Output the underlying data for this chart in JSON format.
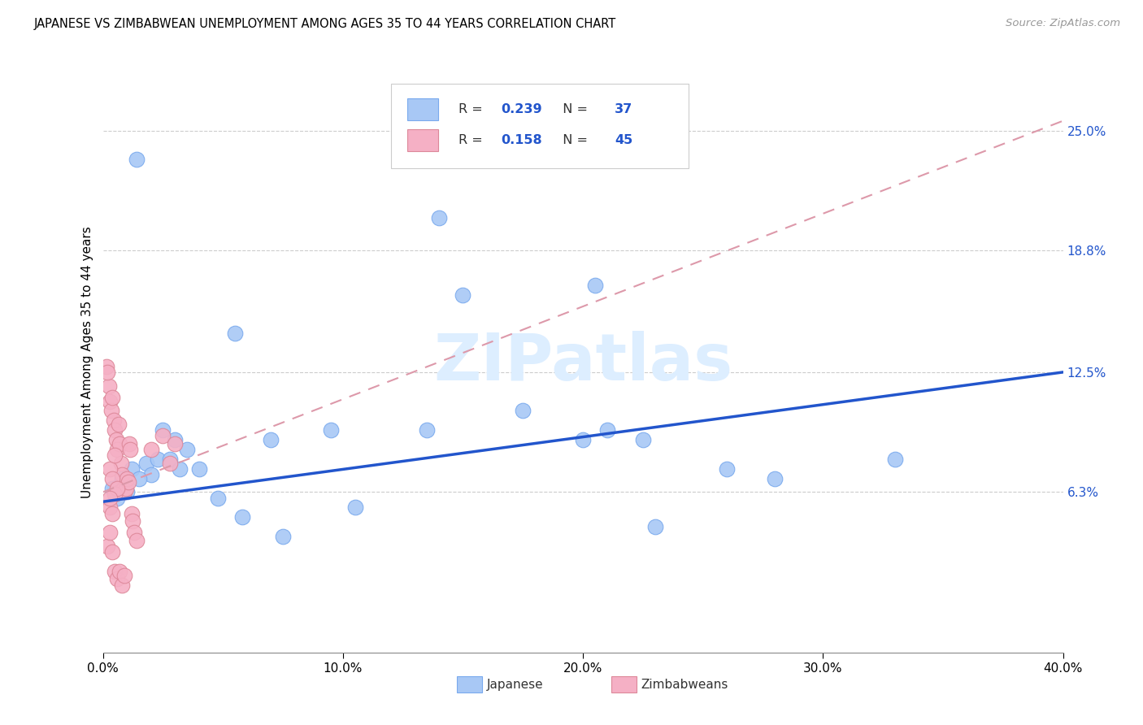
{
  "title": "JAPANESE VS ZIMBABWEAN UNEMPLOYMENT AMONG AGES 35 TO 44 YEARS CORRELATION CHART",
  "source": "Source: ZipAtlas.com",
  "ylabel": "Unemployment Among Ages 35 to 44 years",
  "ytick_labels": [
    "6.3%",
    "12.5%",
    "18.8%",
    "25.0%"
  ],
  "ytick_values": [
    6.3,
    12.5,
    18.8,
    25.0
  ],
  "xlim": [
    0.0,
    40.0
  ],
  "ylim": [
    -2.0,
    28.0
  ],
  "japanese_R": "0.239",
  "japanese_N": "37",
  "zimbabwean_R": "0.158",
  "zimbabwean_N": "45",
  "japanese_color": "#a8c8f5",
  "japanese_edge_color": "#7aaaee",
  "zimbabwean_color": "#f5b0c5",
  "zimbabwean_edge_color": "#dd8899",
  "japanese_line_color": "#2255cc",
  "zimbabwean_line_color": "#dd99aa",
  "grid_color": "#cccccc",
  "watermark_text": "ZIPatlas",
  "watermark_color": "#ddeeff",
  "japanese_x": [
    5.5,
    1.4,
    2.5,
    3.0,
    3.5,
    4.0,
    1.8,
    2.0,
    2.3,
    2.8,
    1.2,
    0.8,
    0.5,
    1.0,
    1.5,
    14.0,
    13.5,
    20.0,
    21.0,
    22.5,
    28.0,
    33.0,
    17.5,
    23.0,
    10.5,
    7.5,
    4.8,
    5.8,
    7.0,
    9.5,
    0.4,
    0.6,
    0.9,
    20.5,
    15.0,
    26.0,
    3.2
  ],
  "japanese_y": [
    14.5,
    23.5,
    9.5,
    9.0,
    8.5,
    7.5,
    7.8,
    7.2,
    8.0,
    8.0,
    7.5,
    7.0,
    6.5,
    6.3,
    7.0,
    20.5,
    9.5,
    9.0,
    9.5,
    9.0,
    7.0,
    8.0,
    10.5,
    4.5,
    5.5,
    4.0,
    6.0,
    5.0,
    9.0,
    9.5,
    6.5,
    6.0,
    6.3,
    17.0,
    16.5,
    7.5,
    7.5
  ],
  "zimbabwean_x": [
    0.15,
    0.25,
    0.3,
    0.35,
    0.4,
    0.45,
    0.5,
    0.55,
    0.6,
    0.65,
    0.7,
    0.75,
    0.8,
    0.85,
    0.9,
    0.95,
    1.0,
    1.05,
    1.1,
    1.15,
    1.2,
    1.25,
    1.3,
    1.4,
    0.2,
    0.3,
    0.4,
    0.5,
    0.6,
    0.7,
    0.8,
    0.9,
    0.3,
    0.4,
    0.5,
    2.0,
    2.5,
    3.0,
    2.8,
    0.3,
    0.4,
    0.5,
    0.6,
    0.3,
    0.2
  ],
  "zimbabwean_y": [
    12.8,
    11.8,
    11.0,
    10.5,
    11.2,
    10.0,
    9.5,
    9.0,
    8.5,
    9.8,
    8.8,
    7.8,
    7.2,
    6.5,
    6.3,
    6.5,
    7.0,
    6.8,
    8.8,
    8.5,
    5.2,
    4.8,
    4.2,
    3.8,
    3.5,
    4.2,
    3.2,
    2.2,
    1.8,
    2.2,
    1.5,
    2.0,
    7.5,
    7.0,
    8.2,
    8.5,
    9.2,
    8.8,
    7.8,
    5.5,
    5.2,
    6.2,
    6.5,
    6.0,
    12.5
  ],
  "jp_trend_x": [
    0.0,
    40.0
  ],
  "jp_trend_y": [
    5.8,
    12.5
  ],
  "zim_trend_x": [
    0.0,
    40.0
  ],
  "zim_trend_y": [
    6.3,
    25.5
  ]
}
